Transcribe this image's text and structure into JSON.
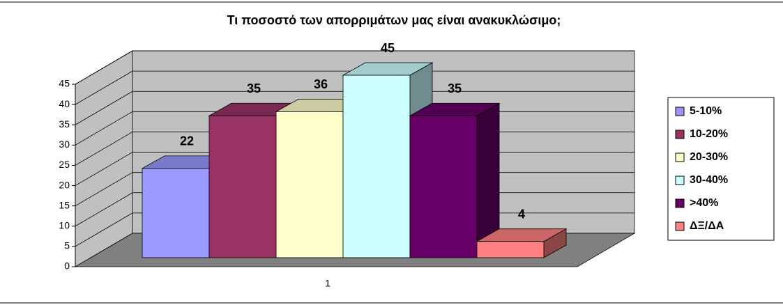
{
  "chart_data": {
    "type": "bar",
    "title": "Τι ποσοστό των απορριμάτων μας είναι ανακυκλώσιμο;",
    "categories": [
      "1"
    ],
    "series": [
      {
        "name": "5-10%",
        "color": "#9999ff",
        "values": [
          22
        ]
      },
      {
        "name": "10-20%",
        "color": "#993366",
        "values": [
          35
        ]
      },
      {
        "name": "20-30%",
        "color": "#ffffcc",
        "values": [
          36
        ]
      },
      {
        "name": "30-40%",
        "color": "#ccffff",
        "values": [
          45
        ]
      },
      {
        "name": ">40%",
        "color": "#660066",
        "values": [
          35
        ]
      },
      {
        "name": "ΔΞ/ΔΑ",
        "color": "#ff8080",
        "values": [
          4
        ]
      }
    ],
    "ylim": [
      0,
      45
    ],
    "yticks": [
      0,
      5,
      10,
      15,
      20,
      25,
      30,
      35,
      40,
      45
    ],
    "grid": true,
    "legend": "right"
  }
}
